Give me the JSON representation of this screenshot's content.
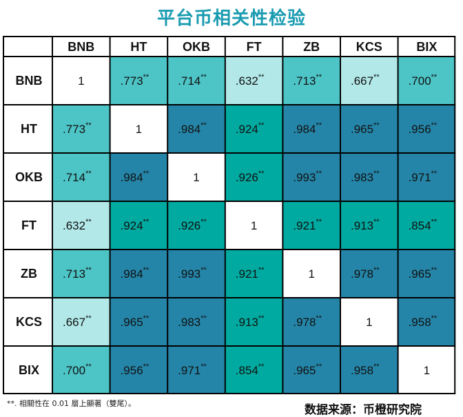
{
  "title": "平台币相关性检验",
  "footnote": "**. 相關性在 0.01 層上顯著（雙尾）。",
  "source": "数据来源：币橙研究院",
  "colors": {
    "title": "#1a9bb0",
    "diagonal": "#ffffff",
    "light": "#b2e8e8",
    "mid": "#4dc4c6",
    "teal": "#00aaa0",
    "dark": "#2585a8",
    "border": "#000000"
  },
  "chart_data": {
    "type": "heatmap",
    "title": "平台币相关性检验",
    "rows": [
      "BNB",
      "HT",
      "OKB",
      "FT",
      "ZB",
      "KCS",
      "BIX"
    ],
    "columns": [
      "BNB",
      "HT",
      "OKB",
      "FT",
      "ZB",
      "KCS",
      "BIX"
    ],
    "values": [
      [
        "1",
        ".773",
        ".714",
        ".632",
        ".713",
        ".667",
        ".700"
      ],
      [
        ".773",
        "1",
        ".984",
        ".924",
        ".984",
        ".965",
        ".956"
      ],
      [
        ".714",
        ".984",
        "1",
        ".926",
        ".993",
        ".983",
        ".971"
      ],
      [
        ".632",
        ".924",
        ".926",
        "1",
        ".921",
        ".913",
        ".854"
      ],
      [
        ".713",
        ".984",
        ".993",
        ".921",
        "1",
        ".978",
        ".965"
      ],
      [
        ".667",
        ".965",
        ".983",
        ".913",
        ".978",
        "1",
        ".958"
      ],
      [
        ".700",
        ".956",
        ".971",
        ".854",
        ".965",
        ".958",
        "1"
      ]
    ],
    "significance_marker": "**",
    "cell_color_class": [
      [
        "diagonal",
        "mid",
        "mid",
        "light",
        "mid",
        "light",
        "mid"
      ],
      [
        "mid",
        "diagonal",
        "dark",
        "teal",
        "dark",
        "dark",
        "dark"
      ],
      [
        "mid",
        "dark",
        "diagonal",
        "teal",
        "dark",
        "dark",
        "dark"
      ],
      [
        "light",
        "teal",
        "teal",
        "diagonal",
        "teal",
        "teal",
        "teal"
      ],
      [
        "mid",
        "dark",
        "dark",
        "teal",
        "diagonal",
        "dark",
        "dark"
      ],
      [
        "light",
        "dark",
        "dark",
        "teal",
        "dark",
        "diagonal",
        "dark"
      ],
      [
        "mid",
        "dark",
        "dark",
        "teal",
        "dark",
        "dark",
        "diagonal"
      ]
    ]
  }
}
